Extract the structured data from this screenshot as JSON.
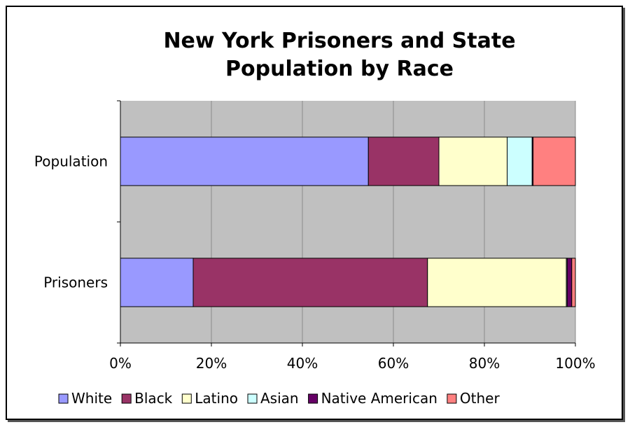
{
  "chart_data": {
    "type": "bar",
    "orientation": "horizontal",
    "stacked": "percent",
    "title": [
      "New York Prisoners and State",
      "Population by Race"
    ],
    "categories": [
      "Population",
      "Prisoners"
    ],
    "series": [
      {
        "name": "White",
        "color": "#9999ff",
        "values": [
          54.5,
          16
        ]
      },
      {
        "name": "Black",
        "color": "#993366",
        "values": [
          15.5,
          51.5
        ]
      },
      {
        "name": "Latino",
        "color": "#ffffcc",
        "values": [
          15,
          30.5
        ]
      },
      {
        "name": "Asian",
        "color": "#ccffff",
        "values": [
          5.5,
          0.2
        ]
      },
      {
        "name": "Native American",
        "color": "#660066",
        "values": [
          0.2,
          1
        ]
      },
      {
        "name": "Other",
        "color": "#ff8080",
        "values": [
          9.3,
          0.8
        ]
      }
    ],
    "xlim": [
      0,
      100
    ],
    "xticks": [
      "0%",
      "20%",
      "40%",
      "60%",
      "80%",
      "100%"
    ],
    "grid": true,
    "plot_background": "#c0c0c0",
    "legend_position": "bottom"
  }
}
